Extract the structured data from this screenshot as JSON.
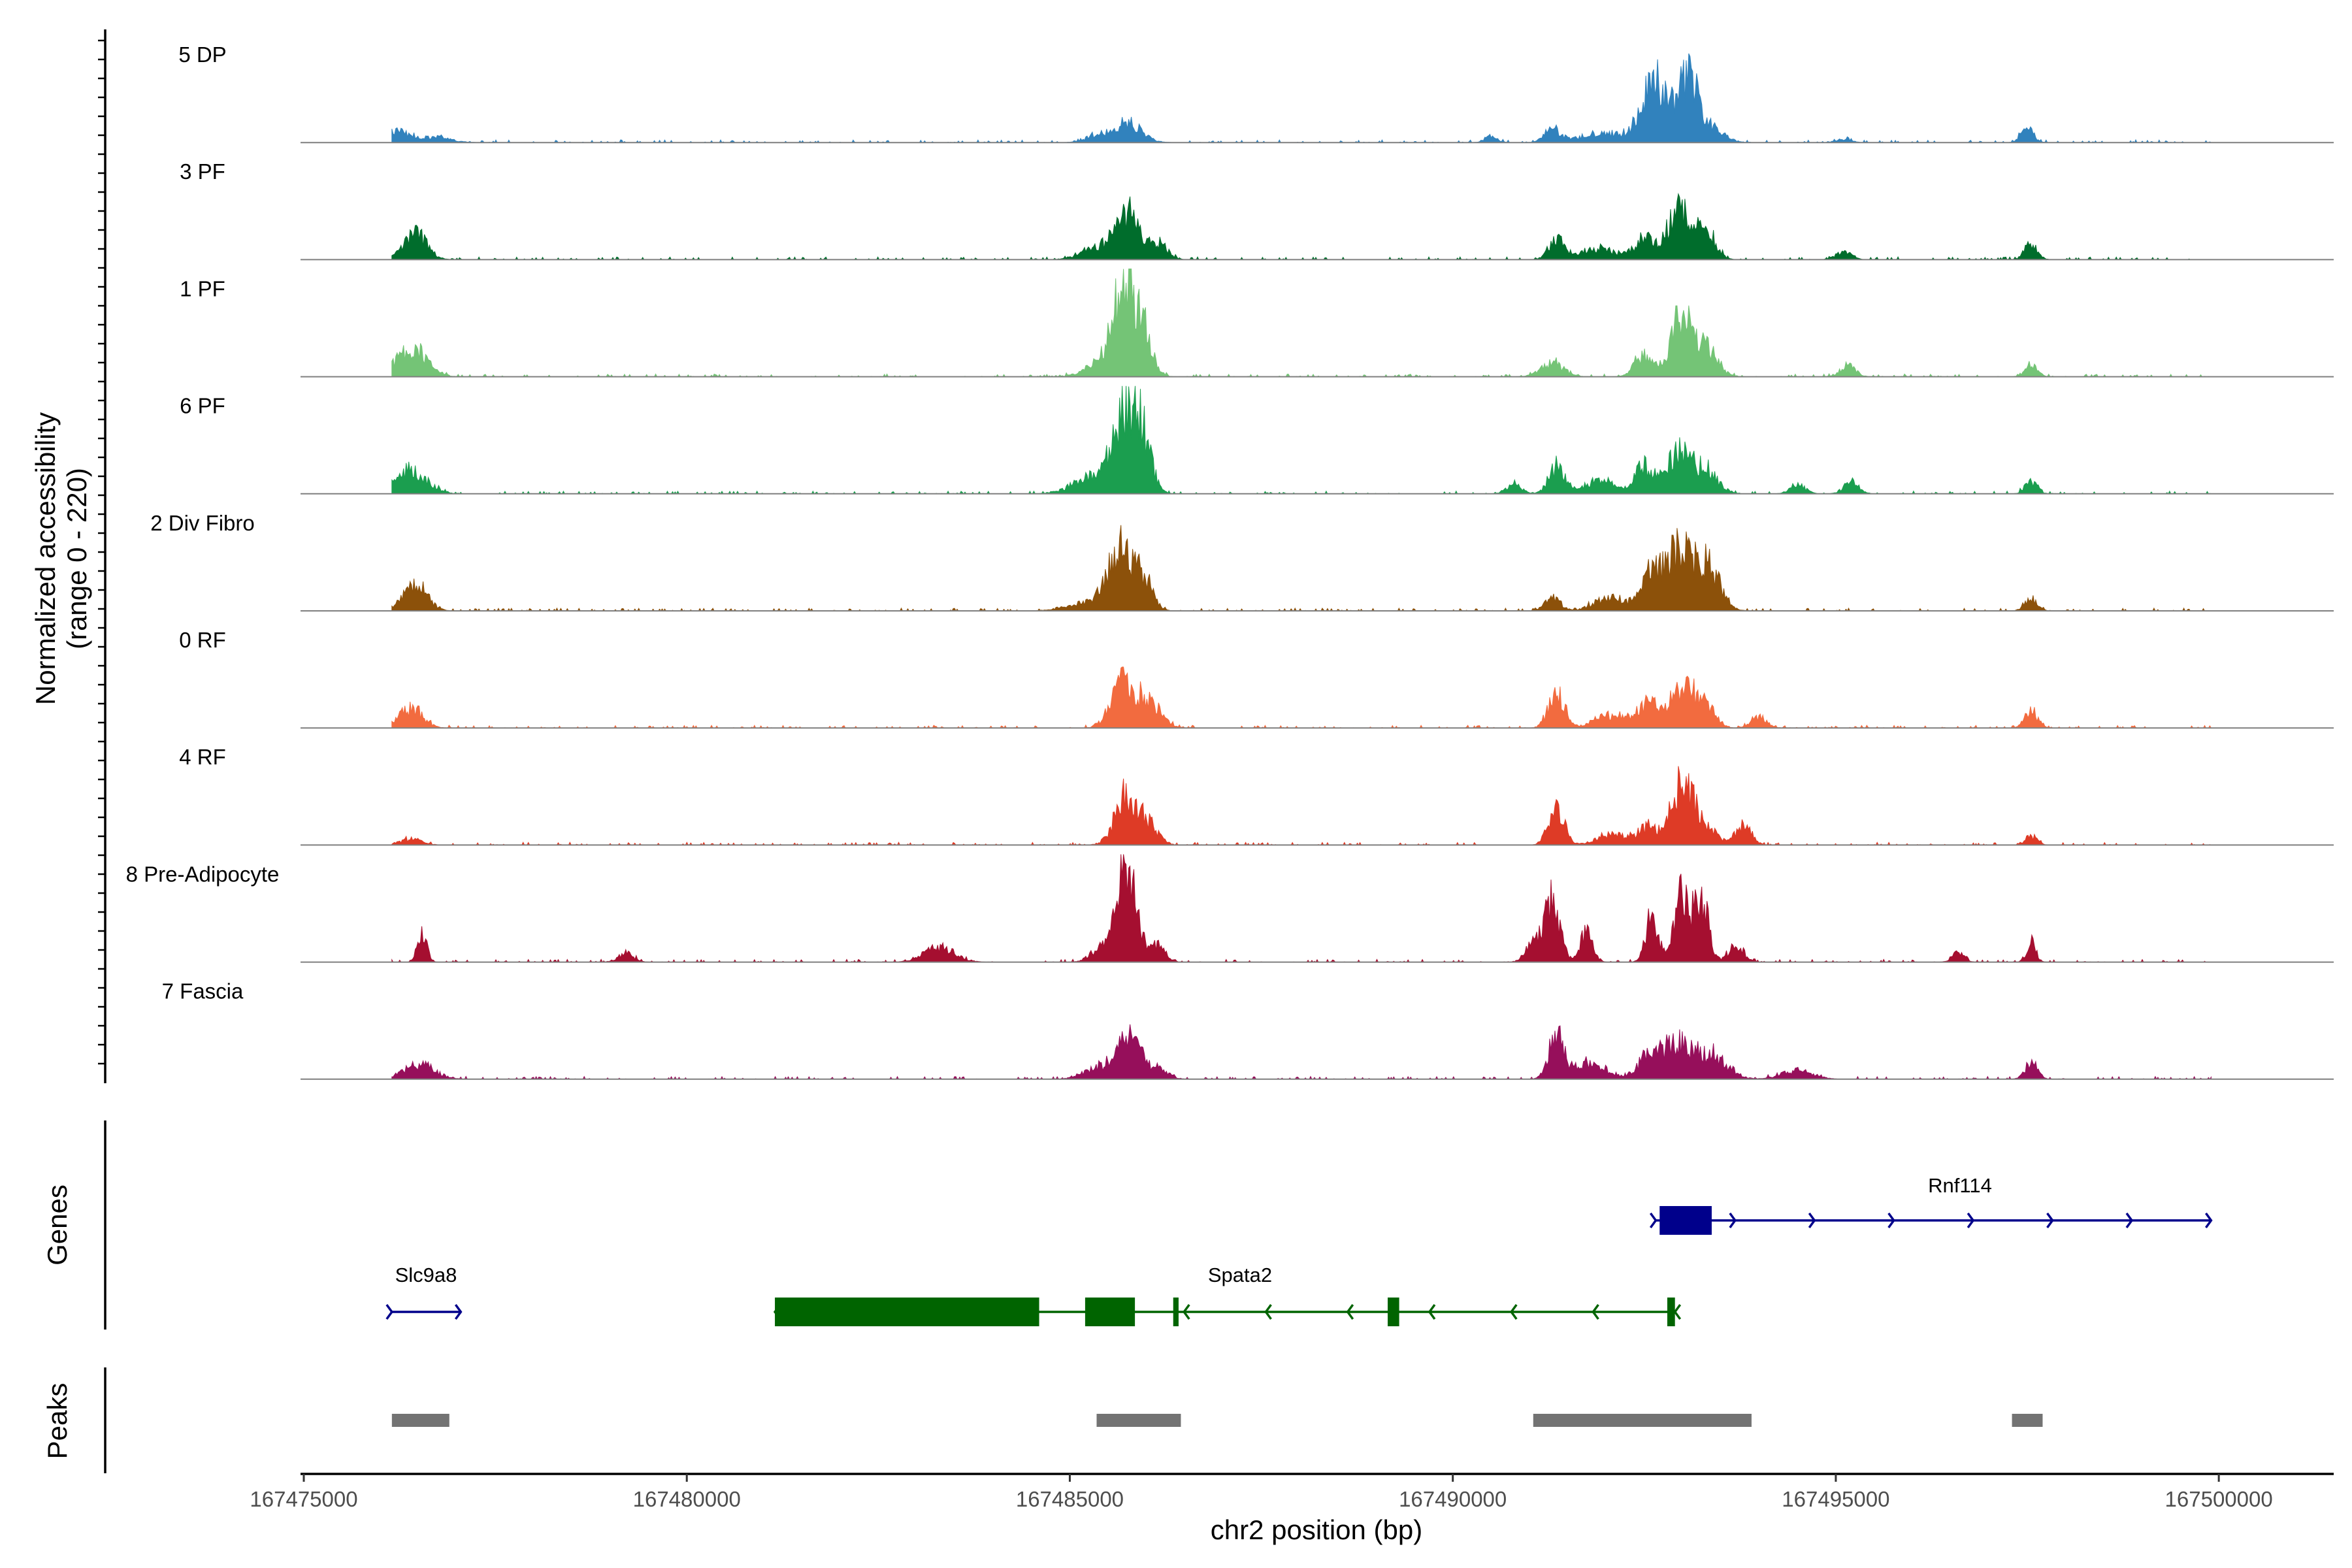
{
  "chart_data": {
    "type": "coverage",
    "title": "",
    "ylabel_line1": "Normalized accessibility",
    "ylabel_line2": "(range 0 - 220)",
    "xlabel": "chr2 position (bp)",
    "xlim": [
      167475000,
      167501500
    ],
    "xticks": [
      167475000,
      167480000,
      167485000,
      167490000,
      167495000,
      167500000
    ],
    "xtick_labels": [
      "167475000",
      "167480000",
      "167485000",
      "167490000",
      "167495000",
      "167500000"
    ],
    "genes_label": "Genes",
    "peaks_label": "Peaks",
    "tracks": [
      {
        "name": "5 DP",
        "color": "#3182BD",
        "peaks": [
          [
            167476200,
            0.11,
            150
          ],
          [
            167476700,
            0.05,
            200
          ],
          [
            167485750,
            0.18,
            180
          ],
          [
            167485350,
            0.06,
            150
          ],
          [
            167491300,
            0.12,
            100
          ],
          [
            167490500,
            0.06,
            80
          ],
          [
            167492000,
            0.08,
            350
          ],
          [
            167492500,
            0.22,
            120
          ],
          [
            167492800,
            0.3,
            200
          ],
          [
            167493100,
            0.5,
            120
          ],
          [
            167492650,
            0.25,
            100
          ],
          [
            167493400,
            0.12,
            150
          ],
          [
            167497500,
            0.13,
            80
          ],
          [
            167495100,
            0.03,
            100
          ]
        ]
      },
      {
        "name": "3 PF",
        "color": "#006D2C",
        "peaks": [
          [
            167476450,
            0.24,
            150
          ],
          [
            167485750,
            0.42,
            150
          ],
          [
            167486150,
            0.15,
            120
          ],
          [
            167485350,
            0.12,
            200
          ],
          [
            167491350,
            0.18,
            100
          ],
          [
            167491900,
            0.1,
            250
          ],
          [
            167492500,
            0.2,
            120
          ],
          [
            167492950,
            0.45,
            150
          ],
          [
            167493300,
            0.28,
            120
          ],
          [
            167495100,
            0.07,
            100
          ],
          [
            167497550,
            0.16,
            80
          ]
        ]
      },
      {
        "name": "1 PF",
        "color": "#74C476",
        "peaks": [
          [
            167476400,
            0.26,
            200
          ],
          [
            167485700,
            0.75,
            140
          ],
          [
            167485950,
            0.4,
            120
          ],
          [
            167485400,
            0.12,
            200
          ],
          [
            167491300,
            0.12,
            150
          ],
          [
            167492500,
            0.2,
            120
          ],
          [
            167492980,
            0.52,
            130
          ],
          [
            167493300,
            0.26,
            150
          ],
          [
            167495150,
            0.1,
            100
          ],
          [
            167497550,
            0.1,
            80
          ]
        ]
      },
      {
        "name": "6 PF",
        "color": "#1B9E4F",
        "peaks": [
          [
            167476400,
            0.22,
            200
          ],
          [
            167485650,
            0.55,
            130
          ],
          [
            167485900,
            0.7,
            130
          ],
          [
            167485300,
            0.15,
            250
          ],
          [
            167491350,
            0.25,
            100
          ],
          [
            167491900,
            0.12,
            200
          ],
          [
            167492500,
            0.25,
            120
          ],
          [
            167492950,
            0.38,
            150
          ],
          [
            167493300,
            0.22,
            150
          ],
          [
            167494500,
            0.08,
            100
          ],
          [
            167495200,
            0.1,
            100
          ],
          [
            167497550,
            0.11,
            80
          ],
          [
            167490800,
            0.08,
            100
          ]
        ]
      },
      {
        "name": "2 Div Fibro",
        "color": "#8C510A",
        "peaks": [
          [
            167476450,
            0.25,
            150
          ],
          [
            167485650,
            0.55,
            150
          ],
          [
            167485950,
            0.3,
            120
          ],
          [
            167485200,
            0.08,
            250
          ],
          [
            167491300,
            0.12,
            100
          ],
          [
            167492050,
            0.12,
            200
          ],
          [
            167492550,
            0.3,
            120
          ],
          [
            167492950,
            0.55,
            200
          ],
          [
            167493350,
            0.35,
            150
          ],
          [
            167497550,
            0.12,
            80
          ]
        ]
      },
      {
        "name": "0 RF",
        "color": "#F26B3F",
        "peaks": [
          [
            167476400,
            0.18,
            150
          ],
          [
            167485700,
            0.42,
            150
          ],
          [
            167486050,
            0.22,
            150
          ],
          [
            167491350,
            0.34,
            100
          ],
          [
            167492050,
            0.12,
            200
          ],
          [
            167492550,
            0.22,
            150
          ],
          [
            167493000,
            0.38,
            150
          ],
          [
            167493300,
            0.22,
            120
          ],
          [
            167494000,
            0.1,
            100
          ],
          [
            167497550,
            0.16,
            80
          ]
        ]
      },
      {
        "name": "4 RF",
        "color": "#DE3B26",
        "peaks": [
          [
            167476400,
            0.05,
            150
          ],
          [
            167485750,
            0.48,
            150
          ],
          [
            167486050,
            0.15,
            120
          ],
          [
            167491350,
            0.35,
            100
          ],
          [
            167492100,
            0.1,
            200
          ],
          [
            167492550,
            0.15,
            120
          ],
          [
            167493000,
            0.55,
            150
          ],
          [
            167493300,
            0.15,
            150
          ],
          [
            167493800,
            0.18,
            100
          ],
          [
            167497550,
            0.08,
            80
          ]
        ]
      },
      {
        "name": "8 Pre-Adipocyte",
        "color": "#A50F30",
        "peaks": [
          [
            167476550,
            0.24,
            60
          ],
          [
            167485750,
            0.88,
            120
          ],
          [
            167485450,
            0.15,
            150
          ],
          [
            167486150,
            0.15,
            100
          ],
          [
            167491300,
            0.55,
            100
          ],
          [
            167491050,
            0.18,
            100
          ],
          [
            167491750,
            0.28,
            80
          ],
          [
            167492600,
            0.45,
            80
          ],
          [
            167493000,
            0.62,
            100
          ],
          [
            167493250,
            0.55,
            90
          ],
          [
            167493700,
            0.15,
            100
          ],
          [
            167497550,
            0.18,
            60
          ],
          [
            167483300,
            0.13,
            200
          ],
          [
            167479200,
            0.08,
            100
          ],
          [
            167496600,
            0.08,
            80
          ]
        ]
      },
      {
        "name": "7 Fascia",
        "color": "#960F5B",
        "peaks": [
          [
            167476500,
            0.14,
            200
          ],
          [
            167485750,
            0.35,
            150
          ],
          [
            167485400,
            0.1,
            200
          ],
          [
            167486100,
            0.1,
            150
          ],
          [
            167491350,
            0.38,
            100
          ],
          [
            167491800,
            0.16,
            200
          ],
          [
            167492550,
            0.18,
            150
          ],
          [
            167492950,
            0.32,
            200
          ],
          [
            167493400,
            0.2,
            200
          ],
          [
            167494500,
            0.08,
            200
          ],
          [
            167497550,
            0.15,
            80
          ]
        ]
      }
    ],
    "genes": [
      {
        "name": "Rnf114",
        "strand": "+",
        "color": "#00008B",
        "start": 167492650,
        "end": 167499900,
        "exons": [
          [
            167492700,
            167493380
          ]
        ]
      },
      {
        "name": "Slc9a8",
        "strand": "+",
        "color": "#00008B",
        "start": 167476150,
        "end": 167477050,
        "exons": []
      },
      {
        "name": "Spata2",
        "strand": "-",
        "color": "#006400",
        "start": 167481150,
        "end": 167492900,
        "exons": [
          [
            167481150,
            167484600
          ],
          [
            167485200,
            167485850
          ],
          [
            167486350,
            167486420
          ],
          [
            167489150,
            167489300
          ],
          [
            167492800,
            167492900
          ]
        ]
      }
    ],
    "peaks": [
      [
        167476150,
        167476900
      ],
      [
        167485350,
        167486450
      ],
      [
        167491050,
        167493900
      ],
      [
        167497300,
        167497700
      ]
    ]
  }
}
